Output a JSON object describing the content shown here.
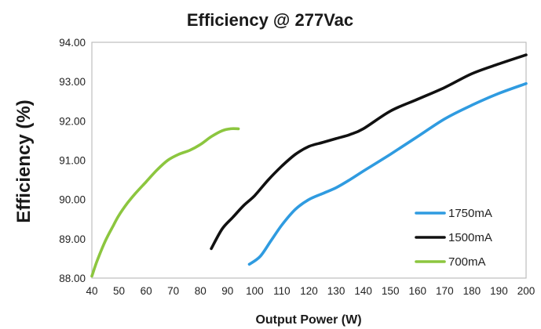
{
  "chart_data": {
    "type": "line",
    "title": "Efficiency @  277Vac",
    "xlabel": "Output Power (W)",
    "ylabel": "Efficiency (%)",
    "xlim": [
      40,
      200
    ],
    "ylim": [
      88.0,
      94.0
    ],
    "x_ticks": [
      40,
      50,
      60,
      70,
      80,
      90,
      100,
      110,
      120,
      130,
      140,
      150,
      160,
      170,
      180,
      190,
      200
    ],
    "y_ticks": [
      "88.00",
      "89.00",
      "90.00",
      "91.00",
      "92.00",
      "93.00",
      "94.00"
    ],
    "grid": false,
    "legend_position": "bottom-right",
    "series": [
      {
        "name": "1750mA",
        "color": "#2f9be0",
        "x": [
          98,
          102,
          106,
          110,
          115,
          120,
          125,
          130,
          135,
          140,
          150,
          160,
          170,
          180,
          190,
          200
        ],
        "y": [
          88.35,
          88.55,
          88.95,
          89.35,
          89.75,
          90.0,
          90.15,
          90.3,
          90.5,
          90.72,
          91.15,
          91.6,
          92.05,
          92.4,
          92.7,
          92.95
        ]
      },
      {
        "name": "1500mA",
        "color": "#111111",
        "x": [
          84,
          88,
          92,
          96,
          100,
          105,
          110,
          115,
          120,
          125,
          130,
          135,
          140,
          150,
          160,
          170,
          180,
          190,
          200
        ],
        "y": [
          88.75,
          89.25,
          89.55,
          89.85,
          90.1,
          90.5,
          90.85,
          91.15,
          91.35,
          91.45,
          91.55,
          91.65,
          91.8,
          92.25,
          92.55,
          92.85,
          93.2,
          93.45,
          93.68
        ]
      },
      {
        "name": "700mA",
        "color": "#8cc63f",
        "x": [
          40,
          42,
          45,
          48,
          50,
          53,
          56,
          60,
          64,
          68,
          72,
          76,
          80,
          84,
          88,
          91,
          94
        ],
        "y": [
          88.05,
          88.45,
          88.95,
          89.35,
          89.6,
          89.9,
          90.15,
          90.45,
          90.75,
          91.0,
          91.15,
          91.25,
          91.4,
          91.6,
          91.75,
          91.8,
          91.8
        ]
      }
    ]
  }
}
